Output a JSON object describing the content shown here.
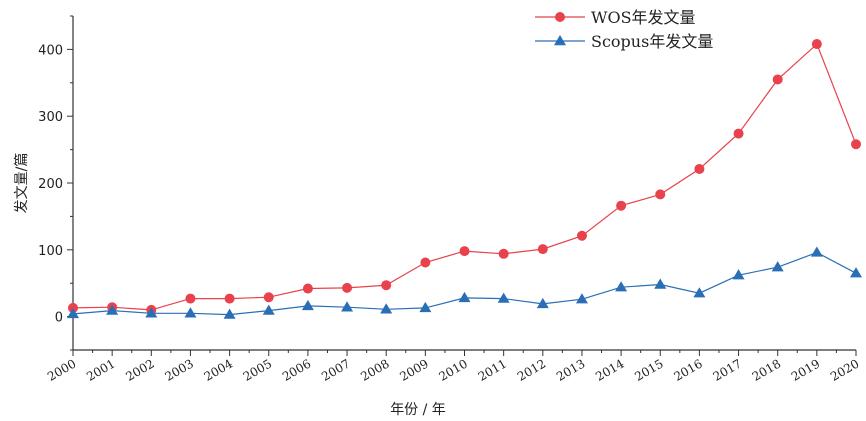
{
  "chart_data": {
    "type": "line",
    "title": "",
    "xlabel": "年份 / 年",
    "ylabel": "发文量/篇",
    "x": [
      "2000",
      "2001",
      "2002",
      "2003",
      "2004",
      "2005",
      "2006",
      "2007",
      "2008",
      "2009",
      "2010",
      "2011",
      "2012",
      "2013",
      "2014",
      "2015",
      "2016",
      "2017",
      "2018",
      "2019",
      "2020"
    ],
    "ylim": [
      -50,
      450
    ],
    "yticks": [
      0,
      100,
      200,
      300,
      400
    ],
    "grid": false,
    "legend_position": "top-right",
    "series": [
      {
        "name": "WOS年发文量",
        "color": "#e8424c",
        "marker": "circle",
        "values": [
          13,
          14,
          10,
          27,
          27,
          29,
          42,
          43,
          47,
          81,
          98,
          94,
          101,
          121,
          166,
          183,
          221,
          274,
          355,
          408,
          258
        ]
      },
      {
        "name": "Scopus年发文量",
        "color": "#2a6fb5",
        "marker": "triangle",
        "values": [
          4,
          9,
          5,
          5,
          3,
          9,
          16,
          14,
          11,
          13,
          28,
          27,
          19,
          26,
          44,
          48,
          35,
          62,
          74,
          96,
          65
        ]
      }
    ]
  }
}
